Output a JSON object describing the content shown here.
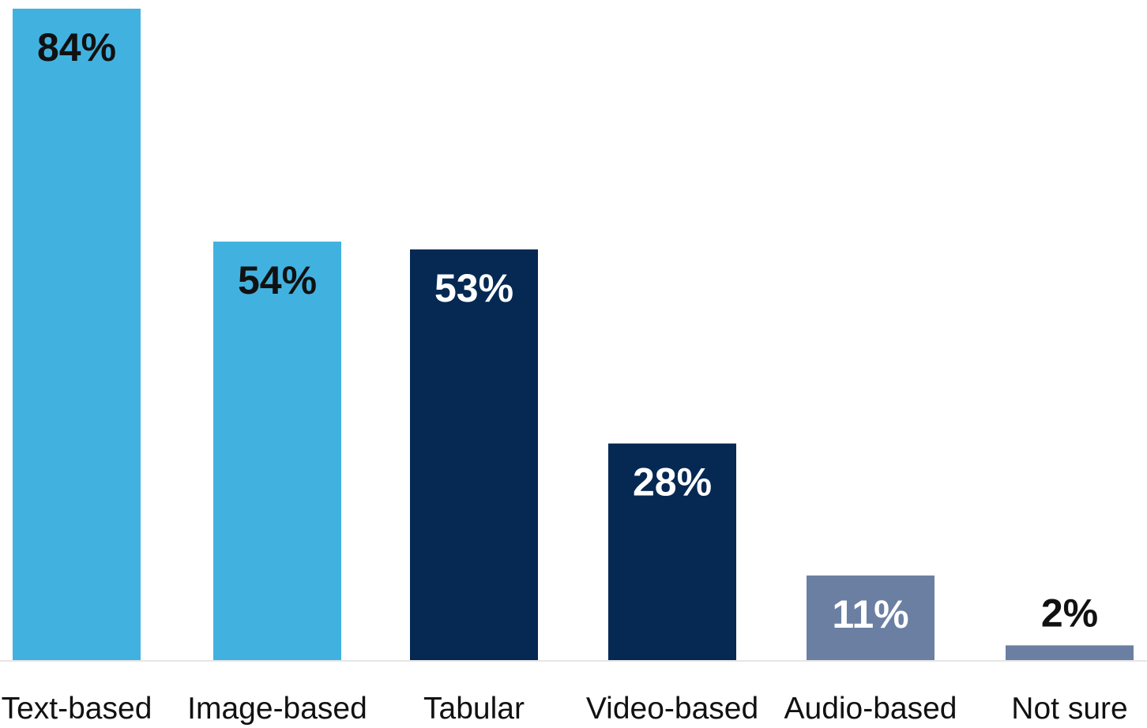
{
  "chart_data": {
    "type": "bar",
    "title": "",
    "xlabel": "",
    "ylabel": "",
    "categories": [
      "Text-based",
      "Image-based",
      "Tabular",
      "Video-based",
      "Audio-based",
      "Not sure"
    ],
    "values": [
      84,
      54,
      53,
      28,
      11,
      2
    ],
    "value_labels": [
      "84%",
      "54%",
      "53%",
      "28%",
      "11%",
      "2%"
    ],
    "ylim": [
      0,
      84
    ],
    "grid": false,
    "legend": "none",
    "bar_colors": [
      "#41b2e0",
      "#41b2e0",
      "#052953",
      "#052953",
      "#6b7fa3",
      "#6b7fa3"
    ],
    "label_colors": [
      "#111111",
      "#111111",
      "#ffffff",
      "#ffffff",
      "#ffffff",
      "#111111"
    ]
  },
  "colors": {
    "baseline": "#e6e6e6",
    "category_text": "#111111",
    "background": "#ffffff"
  }
}
